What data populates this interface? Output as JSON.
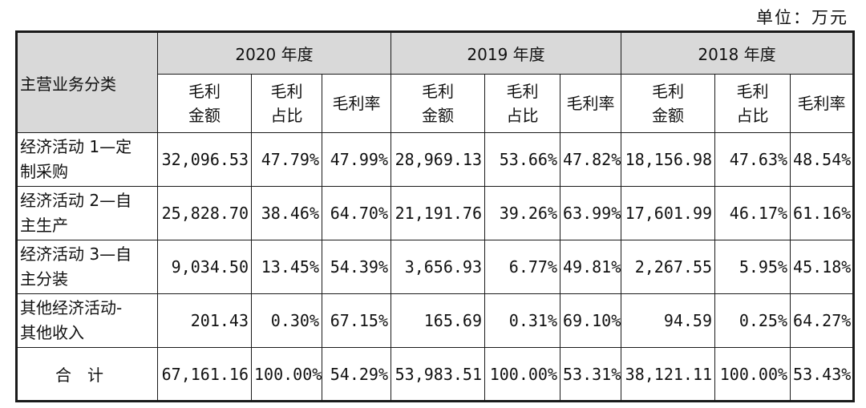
{
  "unit": "单位：万元",
  "header": {
    "category": "主营业务分类",
    "years": [
      "2020 年度",
      "2019 年度",
      "2018 年度"
    ],
    "sub": [
      {
        "line1": "毛利",
        "line2": "金额"
      },
      {
        "line1": "毛利",
        "line2": "占比"
      },
      {
        "line1": "毛利率",
        "line2": ""
      }
    ]
  },
  "rows": [
    {
      "label1": "经济活动 1—定",
      "label2": "制采购",
      "cells": [
        "32,096.53",
        "47.79%",
        "47.99%",
        "28,969.13",
        "53.66%",
        "47.82%",
        "18,156.98",
        "47.63%",
        "48.54%"
      ]
    },
    {
      "label1": "经济活动 2—自",
      "label2": "主生产",
      "cells": [
        "25,828.70",
        "38.46%",
        "64.70%",
        "21,191.76",
        "39.26%",
        "63.99%",
        "17,601.99",
        "46.17%",
        "61.16%"
      ]
    },
    {
      "label1": "经济活动 3—自",
      "label2": "主分装",
      "cells": [
        "9,034.50",
        "13.45%",
        "54.39%",
        "3,656.93",
        "6.77%",
        "49.81%",
        "2,267.55",
        "5.95%",
        "45.18%"
      ]
    },
    {
      "label1": "其他经济活动-",
      "label2": "其他收入",
      "cells": [
        "201.43",
        "0.30%",
        "67.15%",
        "165.69",
        "0.31%",
        "69.10%",
        "94.59",
        "0.25%",
        "64.27%"
      ]
    }
  ],
  "total": {
    "label": "合计",
    "cells": [
      "67,161.16",
      "100.00%",
      "54.29%",
      "53,983.51",
      "100.00%",
      "53.31%",
      "38,121.11",
      "100.00%",
      "53.43%"
    ]
  }
}
